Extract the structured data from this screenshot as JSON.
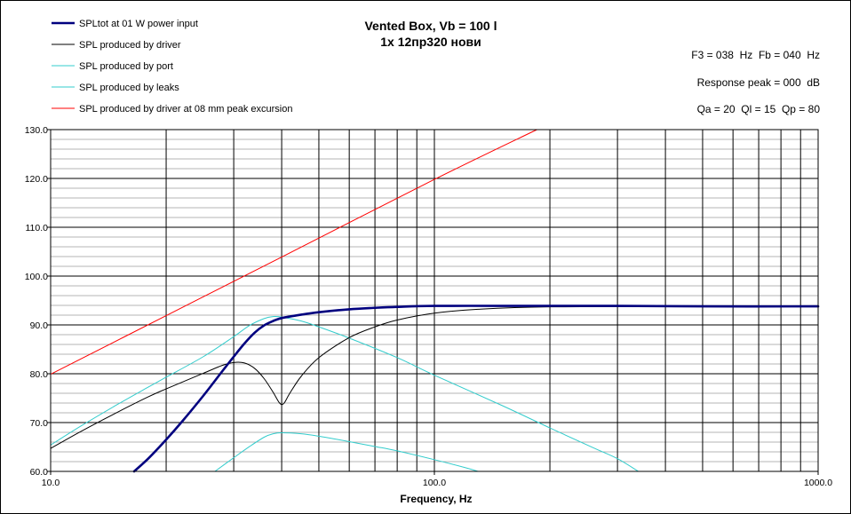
{
  "chart_data": {
    "type": "line",
    "title": "Vented Box, Vb = 100 l",
    "subtitle": "1x 12пр320 нови",
    "xlabel": "Frequency, Hz",
    "ylabel": "",
    "xscale": "log",
    "xlim": [
      10,
      1000
    ],
    "ylim": [
      60,
      130
    ],
    "grid": true,
    "legend_position": "top-left",
    "x_tick_labels": [
      "10.0",
      "100.0",
      "1000.0"
    ],
    "y_tick_labels": [
      "60.0",
      "70.0",
      "80.0",
      "90.0",
      "100.0",
      "110.0",
      "120.0",
      "130.0"
    ],
    "annotations": [
      "F3 = 038  Hz  Fb = 040  Hz",
      "Response peak = 000  dB",
      "Qa = 20  Ql = 15  Qp = 80"
    ],
    "series": [
      {
        "name": "SPLtot at 01 W power input",
        "color": "#00007f",
        "width": "thick",
        "points": [
          [
            16.5,
            60
          ],
          [
            18,
            62.7
          ],
          [
            20,
            66.5
          ],
          [
            22,
            70.2
          ],
          [
            25,
            75.5
          ],
          [
            28,
            80.5
          ],
          [
            30,
            83.5
          ],
          [
            32,
            86.2
          ],
          [
            34,
            88.4
          ],
          [
            36,
            89.9
          ],
          [
            38,
            90.8
          ],
          [
            40,
            91.4
          ],
          [
            45,
            92.1
          ],
          [
            50,
            92.6
          ],
          [
            60,
            93.2
          ],
          [
            70,
            93.5
          ],
          [
            80,
            93.7
          ],
          [
            100,
            93.9
          ],
          [
            150,
            93.9
          ],
          [
            200,
            93.9
          ],
          [
            300,
            93.9
          ],
          [
            500,
            93.8
          ],
          [
            1000,
            93.8
          ]
        ]
      },
      {
        "name": "SPL produced by driver",
        "color": "#000000",
        "width": "thin",
        "points": [
          [
            10,
            64.7
          ],
          [
            12,
            68.2
          ],
          [
            15,
            72.2
          ],
          [
            18,
            75.3
          ],
          [
            20,
            76.9
          ],
          [
            25,
            80.1
          ],
          [
            28,
            81.7
          ],
          [
            30,
            82.3
          ],
          [
            32,
            82.2
          ],
          [
            34,
            81.1
          ],
          [
            36,
            79.0
          ],
          [
            38,
            76.2
          ],
          [
            39.5,
            74.0
          ],
          [
            40.5,
            73.9
          ],
          [
            42,
            76.0
          ],
          [
            45,
            79.5
          ],
          [
            50,
            83.3
          ],
          [
            60,
            87.4
          ],
          [
            70,
            89.6
          ],
          [
            80,
            91.0
          ],
          [
            100,
            92.4
          ],
          [
            130,
            93.2
          ],
          [
            200,
            93.7
          ],
          [
            500,
            93.8
          ],
          [
            1000,
            93.8
          ]
        ]
      },
      {
        "name": "SPL produced by port",
        "color": "#33cccc",
        "width": "thin",
        "points": [
          [
            10,
            65.4
          ],
          [
            12,
            69.3
          ],
          [
            15,
            73.8
          ],
          [
            18,
            77.3
          ],
          [
            20,
            79.3
          ],
          [
            25,
            83.5
          ],
          [
            30,
            87.6
          ],
          [
            33,
            89.9
          ],
          [
            36,
            91.3
          ],
          [
            38,
            91.7
          ],
          [
            40,
            91.6
          ],
          [
            45,
            90.8
          ],
          [
            50,
            89.6
          ],
          [
            60,
            87.3
          ],
          [
            80,
            83.3
          ],
          [
            100,
            79.7
          ],
          [
            150,
            73.5
          ],
          [
            200,
            68.9
          ],
          [
            260,
            64.8
          ],
          [
            300,
            62.6
          ],
          [
            340,
            60
          ]
        ]
      },
      {
        "name": "SPL produced by leaks",
        "color": "#33cccc",
        "width": "thin",
        "points": [
          [
            26.8,
            60
          ],
          [
            30,
            62.8
          ],
          [
            33,
            65.1
          ],
          [
            36,
            67.0
          ],
          [
            38,
            67.7
          ],
          [
            40,
            67.9
          ],
          [
            45,
            67.7
          ],
          [
            50,
            67.2
          ],
          [
            60,
            66.1
          ],
          [
            70,
            65.1
          ],
          [
            80,
            64.2
          ],
          [
            100,
            62.4
          ],
          [
            120,
            60.8
          ],
          [
            130,
            60
          ]
        ]
      },
      {
        "name": "SPL produced by driver at 08 mm peak excursion",
        "color": "#ff0000",
        "width": "thin",
        "points": [
          [
            10,
            79.9
          ],
          [
            20,
            91.9
          ],
          [
            40,
            103.9
          ],
          [
            100,
            119.8
          ],
          [
            185,
            130
          ]
        ]
      }
    ]
  }
}
